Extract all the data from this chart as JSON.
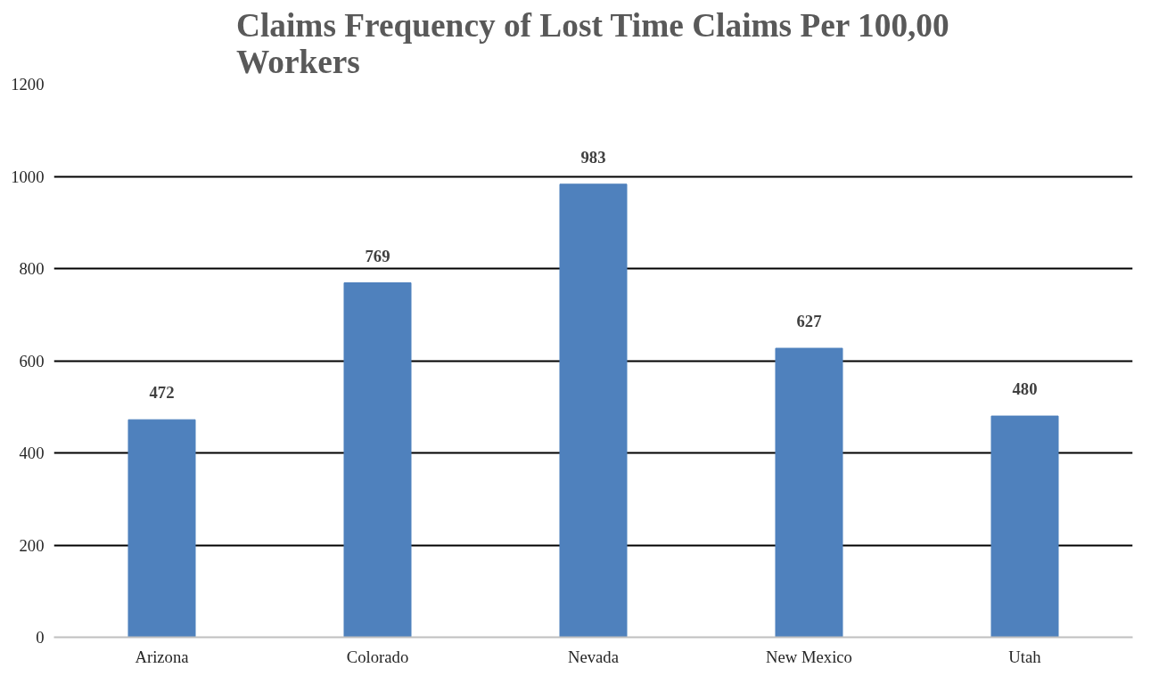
{
  "chart_data": {
    "type": "bar",
    "title": "Claims Frequency of Lost Time Claims Per 100,00 Workers",
    "categories": [
      "Arizona",
      "Colorado",
      "Nevada",
      "New Mexico",
      "Utah"
    ],
    "values": [
      472,
      769,
      983,
      627,
      480
    ],
    "color": "#4f81bd",
    "ylim": [
      0,
      1200
    ],
    "yticks": [
      0,
      200,
      400,
      600,
      800,
      1000,
      1200
    ],
    "grid": "y",
    "data_labels": true
  }
}
